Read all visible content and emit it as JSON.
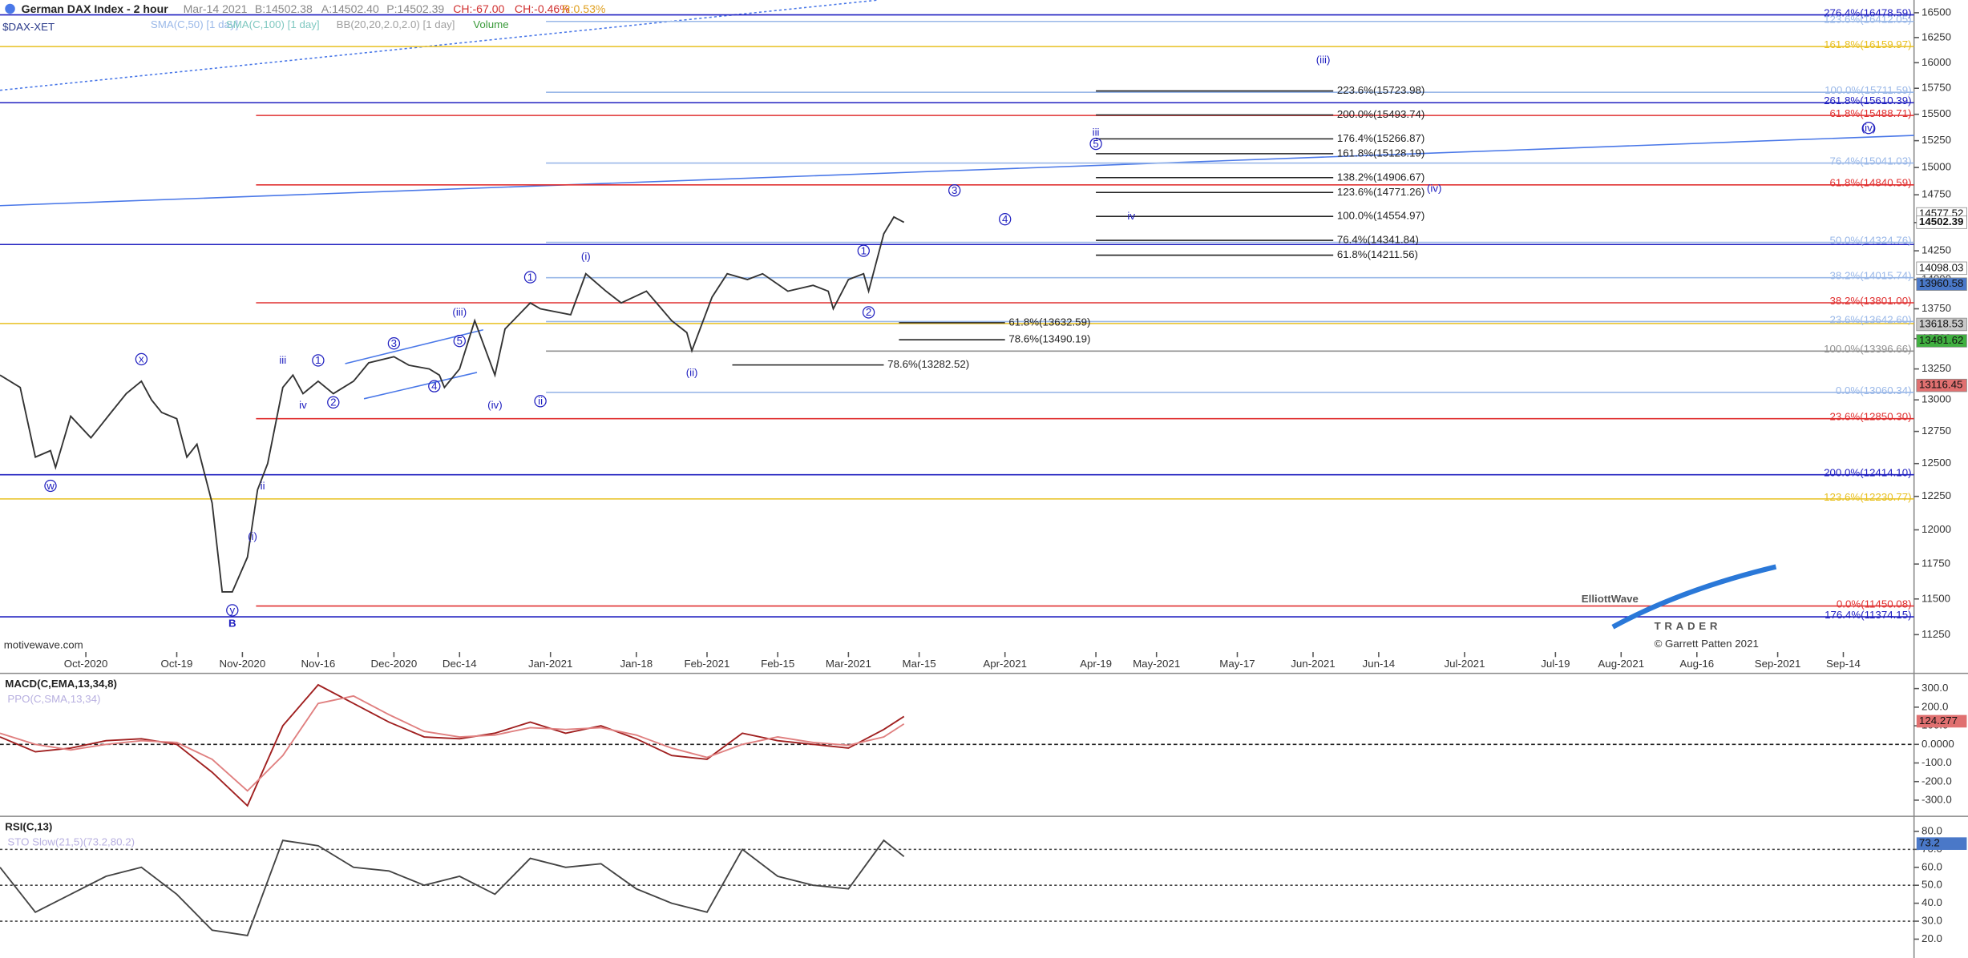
{
  "header": {
    "title": "German DAX Index - 2 hour",
    "symbol": "$DAX-XET",
    "date": "Mar-14 2021",
    "bid": "B:14502.38",
    "ask": "A:14502.40",
    "price": "P:14502.39",
    "change": "CH:-67.00",
    "change_pct": "CH:-0.46%",
    "range": "R:0.53%",
    "indicators": [
      {
        "text": "SMA(C,50) [1 day]",
        "color": "#9ab8e8"
      },
      {
        "text": "SMA(C,100) [1 day]",
        "color": "#7fc8c0"
      },
      {
        "text": "BB(20,20,2.0,2.0) [1 day]",
        "color": "#a0a0a0"
      },
      {
        "text": "Volume",
        "color": "#3a9a3a"
      }
    ]
  },
  "footer": {
    "source": "motivewave.com"
  },
  "logo": {
    "brand": "ElliottWave",
    "sub": "TRADER",
    "copyright": "© Garrett Patten 2021"
  },
  "chart_data": [
    {
      "type": "line",
      "name": "price",
      "log_scale": true,
      "xlim": [
        "2020-09-14",
        "2021-09-28"
      ],
      "ylim": [
        10985,
        16630
      ],
      "xticks": [
        {
          "value": "2020-10-01",
          "label": "Oct-2020"
        },
        {
          "value": "2020-10-19",
          "label": "Oct-19"
        },
        {
          "value": "2020-11-01",
          "label": "Nov-2020"
        },
        {
          "value": "2020-11-16",
          "label": "Nov-16"
        },
        {
          "value": "2020-12-01",
          "label": "Dec-2020"
        },
        {
          "value": "2020-12-14",
          "label": "Dec-14"
        },
        {
          "value": "2021-01-01",
          "label": "Jan-2021"
        },
        {
          "value": "2021-01-18",
          "label": "Jan-18"
        },
        {
          "value": "2021-02-01",
          "label": "Feb-2021"
        },
        {
          "value": "2021-02-15",
          "label": "Feb-15"
        },
        {
          "value": "2021-03-01",
          "label": "Mar-2021"
        },
        {
          "value": "2021-03-15",
          "label": "Mar-15"
        },
        {
          "value": "2021-04-01",
          "label": "Apr-2021"
        },
        {
          "value": "2021-04-19",
          "label": "Apr-19"
        },
        {
          "value": "2021-05-01",
          "label": "May-2021"
        },
        {
          "value": "2021-05-17",
          "label": "May-17"
        },
        {
          "value": "2021-06-01",
          "label": "Jun-2021"
        },
        {
          "value": "2021-06-14",
          "label": "Jun-14"
        },
        {
          "value": "2021-07-01",
          "label": "Jul-2021"
        },
        {
          "value": "2021-07-19",
          "label": "Jul-19"
        },
        {
          "value": "2021-08-01",
          "label": "Aug-2021"
        },
        {
          "value": "2021-08-16",
          "label": "Aug-16"
        },
        {
          "value": "2021-09-01",
          "label": "Sep-2021"
        },
        {
          "value": "2021-09-14",
          "label": "Sep-14"
        }
      ],
      "yticks": [
        11250,
        11500,
        11750,
        12000,
        12250,
        12500,
        12750,
        13000,
        13250,
        13500,
        13750,
        14000,
        14250,
        14500,
        14750,
        15000,
        15250,
        15500,
        15750,
        16000,
        16250,
        16500
      ],
      "series": [
        {
          "name": "DAX",
          "color": "#333333",
          "x": [
            "2020-09-14",
            "2020-09-18",
            "2020-09-21",
            "2020-09-24",
            "2020-09-25",
            "2020-09-28",
            "2020-10-02",
            "2020-10-06",
            "2020-10-09",
            "2020-10-12",
            "2020-10-14",
            "2020-10-16",
            "2020-10-19",
            "2020-10-21",
            "2020-10-23",
            "2020-10-26",
            "2020-10-28",
            "2020-10-30",
            "2020-11-02",
            "2020-11-04",
            "2020-11-06",
            "2020-11-09",
            "2020-11-11",
            "2020-11-13",
            "2020-11-16",
            "2020-11-19",
            "2020-11-23",
            "2020-11-26",
            "2020-12-01",
            "2020-12-04",
            "2020-12-08",
            "2020-12-10",
            "2020-12-11",
            "2020-12-14",
            "2020-12-17",
            "2020-12-21",
            "2020-12-23",
            "2020-12-28",
            "2020-12-30",
            "2021-01-05",
            "2021-01-08",
            "2021-01-12",
            "2021-01-15",
            "2021-01-20",
            "2021-01-25",
            "2021-01-28",
            "2021-01-29",
            "2021-02-02",
            "2021-02-05",
            "2021-02-09",
            "2021-02-12",
            "2021-02-17",
            "2021-02-22",
            "2021-02-25",
            "2021-02-26",
            "2021-03-01",
            "2021-03-04",
            "2021-03-05",
            "2021-03-08",
            "2021-03-10",
            "2021-03-12"
          ],
          "values": [
            13200,
            13100,
            12550,
            12600,
            12470,
            12870,
            12700,
            12900,
            13050,
            13150,
            13000,
            12900,
            12850,
            12550,
            12650,
            12200,
            11550,
            11550,
            11800,
            12300,
            12500,
            13100,
            13200,
            13050,
            13150,
            13050,
            13150,
            13300,
            13350,
            13280,
            13250,
            13200,
            13100,
            13250,
            13650,
            13200,
            13580,
            13800,
            13750,
            13700,
            14050,
            13900,
            13800,
            13900,
            13650,
            13550,
            13400,
            13850,
            14050,
            14000,
            14050,
            13900,
            13950,
            13900,
            13750,
            14000,
            14050,
            13900,
            14400,
            14550,
            14502.39
          ]
        }
      ],
      "levels": [
        {
          "label": "276.4%(16478.59)",
          "value": 16478.59,
          "color": "#2020c0"
        },
        {
          "label": "123.6%(16412.05)",
          "value": 16412.05,
          "color": "#9ab8e8"
        },
        {
          "label": "161.8%(16159.97)",
          "value": 16159.97,
          "color": "#e8c020"
        },
        {
          "label": "100.0%(15711.59)",
          "value": 15711.59,
          "color": "#9ab8e8"
        },
        {
          "label": "261.8%(15610.39)",
          "value": 15610.39,
          "color": "#2020c0"
        },
        {
          "label": "61.8%(15488.71)",
          "value": 15488.71,
          "color": "#e03030"
        },
        {
          "label": "76.4%(15041.03)",
          "value": 15041.03,
          "color": "#9ab8e8"
        },
        {
          "label": "61.8%(14840.59)",
          "value": 14840.59,
          "color": "#e03030"
        },
        {
          "label": "50.0%(14324.76)",
          "value": 14324.76,
          "color": "#9ab8e8"
        },
        {
          "label": "38.2%(14015.74)",
          "value": 14015.74,
          "color": "#9ab8e8"
        },
        {
          "label": "38.2%(13801.00)",
          "value": 13801.0,
          "color": "#e03030"
        },
        {
          "label": "23.6%(13642.60)",
          "value": 13642.6,
          "color": "#9ab8e8"
        },
        {
          "label": "100.0%(13396.66)",
          "value": 13396.66,
          "color": "#909090"
        },
        {
          "label": "0.0%(13060.34)",
          "value": 13060.34,
          "color": "#9ab8e8"
        },
        {
          "label": "23.6%(12850.30)",
          "value": 12850.3,
          "color": "#e03030"
        },
        {
          "label": "200.0%(12414.10)",
          "value": 12414.1,
          "color": "#2020c0"
        },
        {
          "label": "123.6%(12230.77)",
          "value": 12230.77,
          "color": "#e8c020"
        },
        {
          "label": "0.0%(11450.08)",
          "value": 11450.08,
          "color": "#e03030"
        },
        {
          "label": "176.4%(11374.15)",
          "value": 11374.15,
          "color": "#2020c0"
        }
      ],
      "projections": [
        {
          "label": "223.6%(15723.98)",
          "value": 15723.98,
          "from": "2021-04-19",
          "to": "2021-06-05"
        },
        {
          "label": "200.0%(15493.74)",
          "value": 15493.74,
          "from": "2021-04-19",
          "to": "2021-06-05"
        },
        {
          "label": "176.4%(15266.87)",
          "value": 15266.87,
          "from": "2021-04-19",
          "to": "2021-06-05"
        },
        {
          "label": "161.8%(15128.19)",
          "value": 15128.19,
          "from": "2021-04-19",
          "to": "2021-06-05"
        },
        {
          "label": "138.2%(14906.67)",
          "value": 14906.67,
          "from": "2021-04-19",
          "to": "2021-06-05"
        },
        {
          "label": "123.6%(14771.26)",
          "value": 14771.26,
          "from": "2021-04-19",
          "to": "2021-06-05"
        },
        {
          "label": "100.0%(14554.97)",
          "value": 14554.97,
          "from": "2021-04-19",
          "to": "2021-06-05"
        },
        {
          "label": "76.4%(14341.84)",
          "value": 14341.84,
          "from": "2021-04-19",
          "to": "2021-06-05"
        },
        {
          "label": "61.8%(14211.56)",
          "value": 14211.56,
          "from": "2021-04-19",
          "to": "2021-06-05"
        },
        {
          "label": "61.8%(13632.59)",
          "value": 13632.59,
          "from": "2021-03-11",
          "to": "2021-04-01"
        },
        {
          "label": "78.6%(13490.19)",
          "value": 13490.19,
          "from": "2021-03-11",
          "to": "2021-04-01"
        },
        {
          "label": "78.6%(13282.52)",
          "value": 13282.52,
          "from": "2021-02-06",
          "to": "2021-03-08"
        }
      ],
      "price_labels": [
        {
          "value": 14577.52,
          "color": "#ffffff"
        },
        {
          "value": 14502.39,
          "color": "#ffffff"
        },
        {
          "value": 14098.03,
          "color": "#ffffff"
        },
        {
          "value": 13960.58,
          "color": "#4a78c8"
        },
        {
          "value": 13618.53,
          "color": "#c8c8c8"
        },
        {
          "value": 13481.62,
          "color": "#40b040"
        },
        {
          "value": 13116.45,
          "color": "#e07070"
        }
      ],
      "waves": [
        {
          "text": "w",
          "x": "2020-09-24",
          "y": 12330,
          "circled": true
        },
        {
          "text": "x",
          "x": "2020-10-12",
          "y": 13330,
          "circled": true
        },
        {
          "text": "y",
          "x": "2020-10-30",
          "y": 11420,
          "circled": true
        },
        {
          "text": "B",
          "x": "2020-10-30",
          "y": 11330,
          "circled": false
        },
        {
          "text": "(i)",
          "x": "2020-11-03",
          "y": 11950,
          "circled": false
        },
        {
          "text": "ii",
          "x": "2020-11-05",
          "y": 12330,
          "circled": false
        },
        {
          "text": "iii",
          "x": "2020-11-09",
          "y": 13320,
          "circled": false
        },
        {
          "text": "iv",
          "x": "2020-11-13",
          "y": 12960,
          "circled": false
        },
        {
          "text": "1",
          "x": "2020-11-16",
          "y": 13320,
          "circled": true
        },
        {
          "text": "2",
          "x": "2020-11-19",
          "y": 12980,
          "circled": true
        },
        {
          "text": "3",
          "x": "2020-12-01",
          "y": 13460,
          "circled": true
        },
        {
          "text": "4",
          "x": "2020-12-09",
          "y": 13110,
          "circled": true
        },
        {
          "text": "5",
          "x": "2020-12-14",
          "y": 13480,
          "circled": true
        },
        {
          "text": "(iii)",
          "x": "2020-12-14",
          "y": 13720,
          "circled": false
        },
        {
          "text": "(iv)",
          "x": "2020-12-21",
          "y": 12960,
          "circled": false
        },
        {
          "text": "1",
          "x": "2020-12-28",
          "y": 14020,
          "circled": true
        },
        {
          "text": "ii",
          "x": "2020-12-30",
          "y": 12990,
          "circled": true
        },
        {
          "text": "(i)",
          "x": "2021-01-08",
          "y": 14200,
          "circled": false
        },
        {
          "text": "(ii)",
          "x": "2021-01-29",
          "y": 13220,
          "circled": false
        },
        {
          "text": "1",
          "x": "2021-03-04",
          "y": 14250,
          "circled": true
        },
        {
          "text": "2",
          "x": "2021-03-05",
          "y": 13720,
          "circled": true
        },
        {
          "text": "3",
          "x": "2021-03-22",
          "y": 14790,
          "circled": true
        },
        {
          "text": "4",
          "x": "2021-04-01",
          "y": 14530,
          "circled": true
        },
        {
          "text": "iii",
          "x": "2021-04-19",
          "y": 15330,
          "circled": false
        },
        {
          "text": "5",
          "x": "2021-04-19",
          "y": 15220,
          "circled": true
        },
        {
          "text": "iv",
          "x": "2021-04-26",
          "y": 14560,
          "circled": false
        },
        {
          "text": "(iv)",
          "x": "2021-06-25",
          "y": 14810,
          "circled": false
        },
        {
          "text": "(iii)",
          "x": "2021-06-03",
          "y": 16030,
          "circled": false
        },
        {
          "text": "(iv)",
          "x": "2021-09-19",
          "y": 15370,
          "circled": true
        }
      ]
    },
    {
      "type": "line",
      "name": "macd",
      "title": "MACD(C,EMA,13,34,8)",
      "subtitle": "PPO(C,SMA,13,34)",
      "xlim": [
        "2020-09-14",
        "2021-09-28"
      ],
      "ylim": [
        -380,
        375
      ],
      "yticks": [
        {
          "value": 300,
          "label": "300.0"
        },
        {
          "value": 200,
          "label": "200.0"
        },
        {
          "value": 100,
          "label": "100.0"
        },
        {
          "value": 0,
          "label": "0.0000"
        },
        {
          "value": -100,
          "label": "-100.0"
        },
        {
          "value": -200,
          "label": "-200.0"
        },
        {
          "value": -300,
          "label": "-300.0"
        }
      ],
      "zero_line": true,
      "x": [
        "2020-09-14",
        "2020-09-21",
        "2020-09-28",
        "2020-10-05",
        "2020-10-12",
        "2020-10-19",
        "2020-10-26",
        "2020-11-02",
        "2020-11-09",
        "2020-11-16",
        "2020-11-23",
        "2020-11-30",
        "2020-12-07",
        "2020-12-14",
        "2020-12-21",
        "2020-12-28",
        "2021-01-04",
        "2021-01-11",
        "2021-01-18",
        "2021-01-25",
        "2021-02-01",
        "2021-02-08",
        "2021-02-15",
        "2021-02-22",
        "2021-03-01",
        "2021-03-08",
        "2021-03-12"
      ],
      "series": [
        {
          "name": "MACD",
          "color": "#a02020",
          "values": [
            40,
            -40,
            -20,
            20,
            30,
            0,
            -150,
            -330,
            100,
            320,
            220,
            120,
            40,
            30,
            60,
            120,
            60,
            100,
            30,
            -60,
            -80,
            60,
            20,
            0,
            -20,
            80,
            150
          ]
        },
        {
          "name": "Signal",
          "color": "#e08080",
          "values": [
            60,
            0,
            -30,
            0,
            20,
            10,
            -80,
            -250,
            -60,
            220,
            260,
            160,
            70,
            40,
            50,
            90,
            80,
            90,
            50,
            -20,
            -70,
            0,
            40,
            10,
            -5,
            40,
            110
          ]
        }
      ],
      "value_box": {
        "value": 124.277,
        "color": "#e07070"
      }
    },
    {
      "type": "line",
      "name": "rsi",
      "title": "RSI(C,13)",
      "subtitle": "STO Slow(21,5)(73.2,80.2)",
      "xlim": [
        "2020-09-14",
        "2021-09-28"
      ],
      "ylim": [
        9.5,
        87.7
      ],
      "yticks": [
        {
          "value": 80,
          "label": "80.0"
        },
        {
          "value": 70,
          "label": "70.0"
        },
        {
          "value": 60,
          "label": "60.0"
        },
        {
          "value": 50,
          "label": "50.0"
        },
        {
          "value": 40,
          "label": "40.0"
        },
        {
          "value": 30,
          "label": "30.0"
        },
        {
          "value": 20,
          "label": "20.0"
        }
      ],
      "guides": [
        70,
        50,
        30
      ],
      "x": [
        "2020-09-14",
        "2020-09-21",
        "2020-09-28",
        "2020-10-05",
        "2020-10-12",
        "2020-10-19",
        "2020-10-26",
        "2020-11-02",
        "2020-11-09",
        "2020-11-16",
        "2020-11-23",
        "2020-11-30",
        "2020-12-07",
        "2020-12-14",
        "2020-12-21",
        "2020-12-28",
        "2021-01-04",
        "2021-01-11",
        "2021-01-18",
        "2021-01-25",
        "2021-02-01",
        "2021-02-08",
        "2021-02-15",
        "2021-02-22",
        "2021-03-01",
        "2021-03-08",
        "2021-03-12"
      ],
      "series": [
        {
          "name": "RSI",
          "color": "#444444",
          "values": [
            60,
            35,
            45,
            55,
            60,
            45,
            25,
            22,
            75,
            72,
            60,
            58,
            50,
            55,
            45,
            65,
            60,
            62,
            48,
            40,
            35,
            70,
            55,
            50,
            48,
            75,
            66
          ]
        }
      ],
      "value_box": {
        "value": 73.2,
        "color": "#4a78c8"
      }
    }
  ]
}
